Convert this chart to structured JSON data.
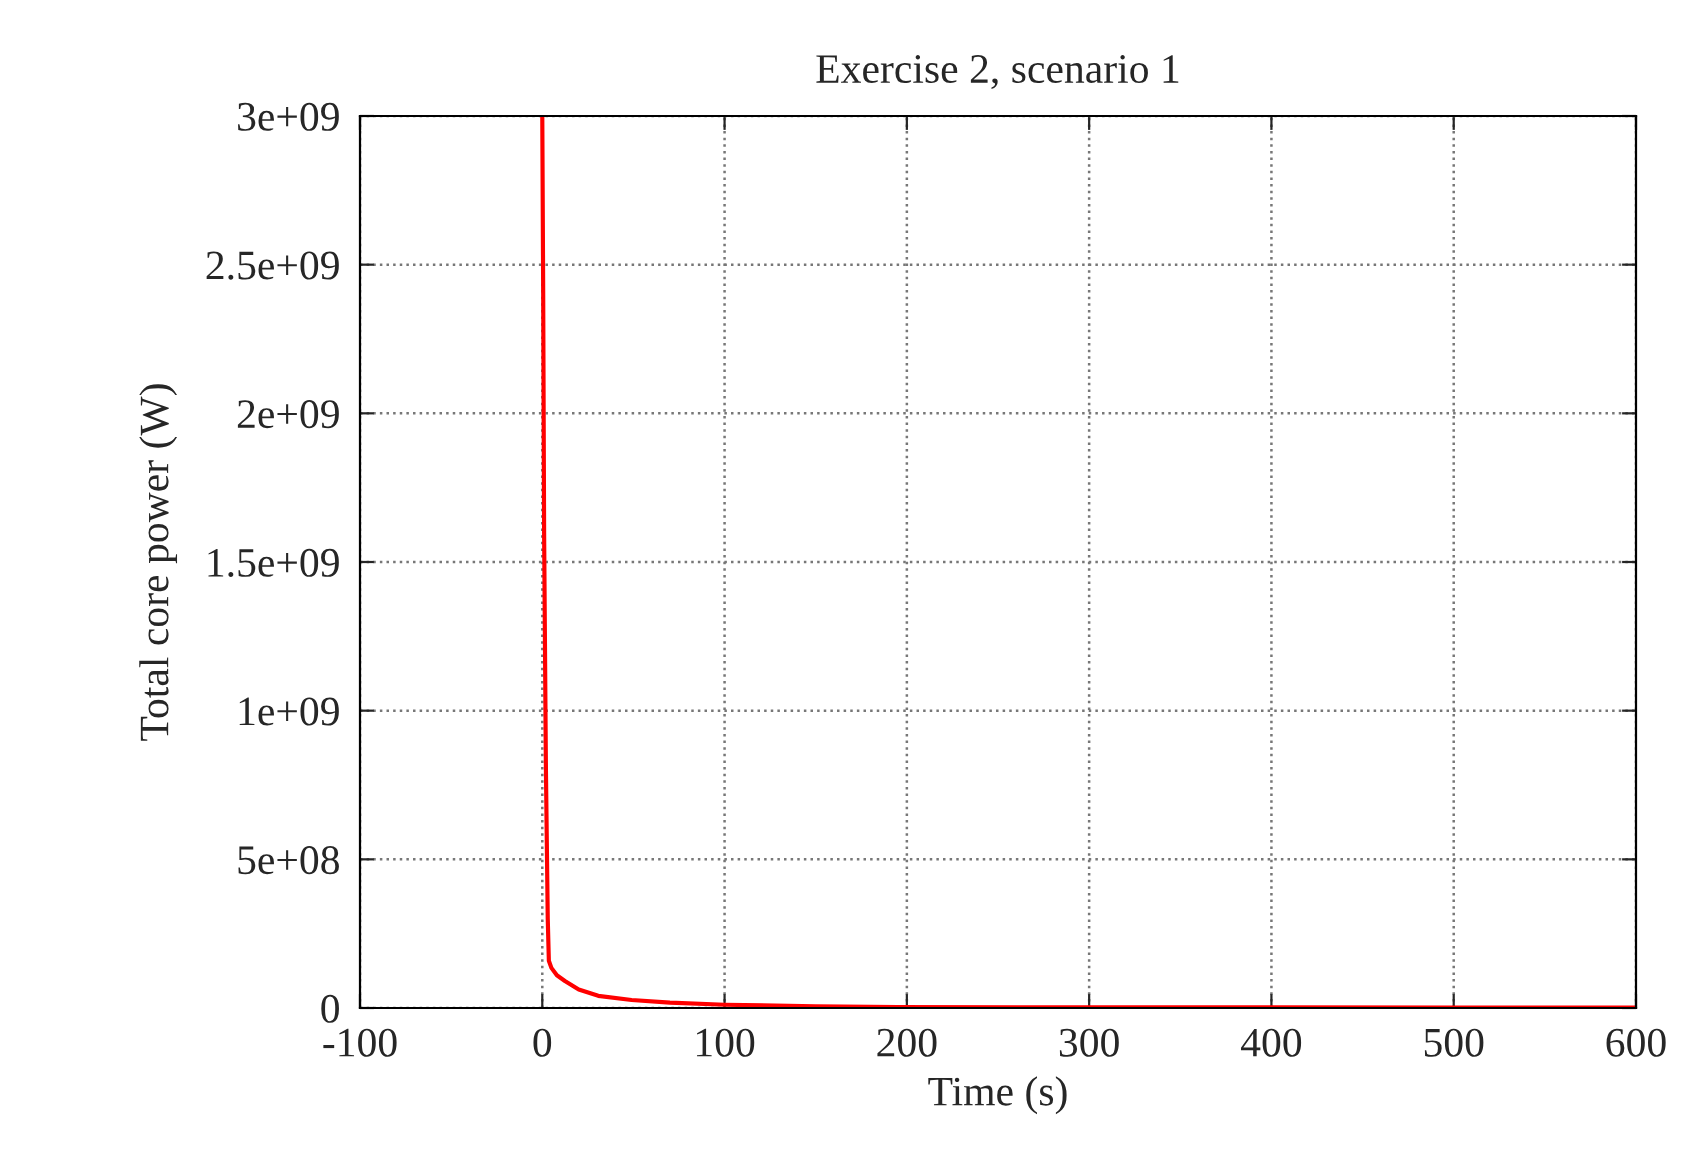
{
  "chart_data": {
    "type": "line",
    "title": "Exercise 2, scenario 1",
    "xlabel": "Time (s)",
    "ylabel": "Total core power (W)",
    "series": [
      {
        "color": "#ff0000",
        "x": [
          0,
          0.5,
          1,
          2,
          3,
          3.6,
          5,
          8,
          12.4,
          20,
          30.7,
          49,
          70,
          100,
          150,
          195,
          300,
          400,
          500,
          600
        ],
        "values": [
          3000000000.0,
          2400000000.0,
          1600000000.0,
          800000000.0,
          300000000.0,
          159000000.0,
          135000000.0,
          110000000.0,
          91000000.0,
          62000000.0,
          41000000.0,
          27000000.0,
          18000000.0,
          11000000.0,
          6000000.0,
          3000000.0,
          2000000.0,
          2000000.0,
          1000000.0,
          1000000.0
        ]
      }
    ],
    "xlim": [
      -100,
      600
    ],
    "xticks": [
      -100,
      0,
      100,
      200,
      300,
      400,
      500,
      600
    ],
    "ylim": [
      0,
      3000000000.0
    ],
    "yticks": [
      {
        "value": 0,
        "label": "0"
      },
      {
        "value": 500000000.0,
        "label": "5e+08"
      },
      {
        "value": 1000000000.0,
        "label": "1e+09"
      },
      {
        "value": 1500000000.0,
        "label": "1.5e+09"
      },
      {
        "value": 2000000000.0,
        "label": "2e+09"
      },
      {
        "value": 2500000000.0,
        "label": "2.5e+09"
      },
      {
        "value": 3000000000.0,
        "label": "3e+09"
      }
    ],
    "grid": true
  }
}
